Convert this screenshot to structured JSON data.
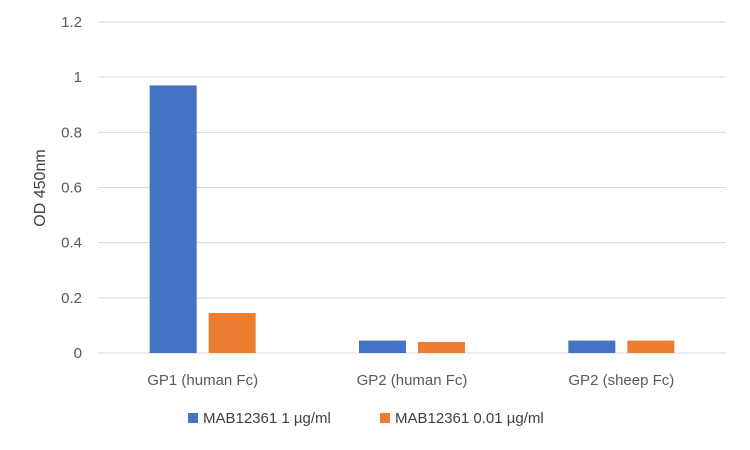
{
  "chart_data": {
    "type": "bar",
    "title": "",
    "xlabel": "",
    "ylabel": "OD 450nm",
    "ylim": [
      0,
      1.2
    ],
    "y_ticks": [
      "0",
      "0.2",
      "0.4",
      "0.6",
      "0.8",
      "1",
      "1.2"
    ],
    "categories": [
      "GP1 (human Fc)",
      "GP2 (human Fc)",
      "GP2 (sheep Fc)"
    ],
    "series": [
      {
        "name": "MAB12361 1 µg/ml",
        "values": [
          0.97,
          0.045,
          0.045
        ],
        "color": "#4472C4"
      },
      {
        "name": "MAB12361 0.01 µg/ml",
        "values": [
          0.145,
          0.04,
          0.045
        ],
        "color": "#ED7D31"
      }
    ],
    "grid": true,
    "legend_position": "bottom"
  }
}
